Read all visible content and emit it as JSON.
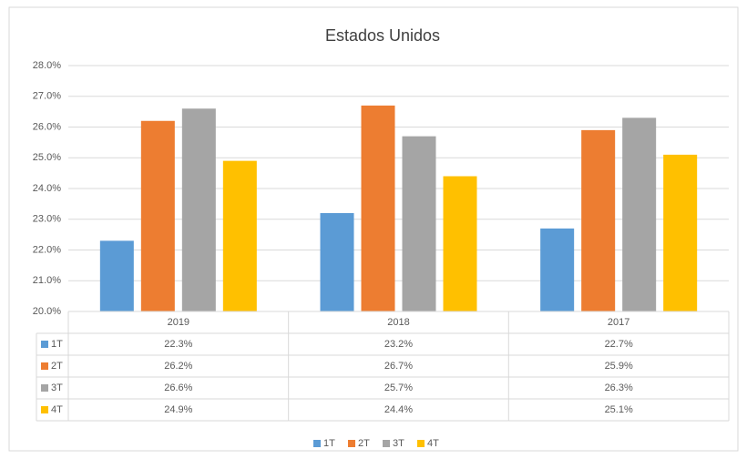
{
  "chart_data": {
    "type": "bar",
    "title": "Estados Unidos",
    "categories": [
      "2019",
      "2018",
      "2017"
    ],
    "series": [
      {
        "name": "1T",
        "color": "#5b9bd5",
        "values": [
          22.3,
          23.2,
          22.7
        ],
        "value_labels": [
          "22.3%",
          "23.2%",
          "22.7%"
        ]
      },
      {
        "name": "2T",
        "color": "#ed7d31",
        "values": [
          26.2,
          26.7,
          25.9
        ],
        "value_labels": [
          "26.2%",
          "26.7%",
          "25.9%"
        ]
      },
      {
        "name": "3T",
        "color": "#a5a5a5",
        "values": [
          26.6,
          25.7,
          26.3
        ],
        "value_labels": [
          "26.6%",
          "25.7%",
          "26.3%"
        ]
      },
      {
        "name": "4T",
        "color": "#ffc000",
        "values": [
          24.9,
          24.4,
          25.1
        ],
        "value_labels": [
          "24.9%",
          "24.4%",
          "25.1%"
        ]
      }
    ],
    "ylim": [
      20,
      28
    ],
    "yticks": [
      {
        "value": 20,
        "label": "20.0%"
      },
      {
        "value": 21,
        "label": "21.0%"
      },
      {
        "value": 22,
        "label": "22.0%"
      },
      {
        "value": 23,
        "label": "23.0%"
      },
      {
        "value": 24,
        "label": "24.0%"
      },
      {
        "value": 25,
        "label": "25.0%"
      },
      {
        "value": 26,
        "label": "26.0%"
      },
      {
        "value": 27,
        "label": "27.0%"
      },
      {
        "value": 28,
        "label": "28.0%"
      }
    ],
    "grid": true,
    "legend": "bottom"
  }
}
